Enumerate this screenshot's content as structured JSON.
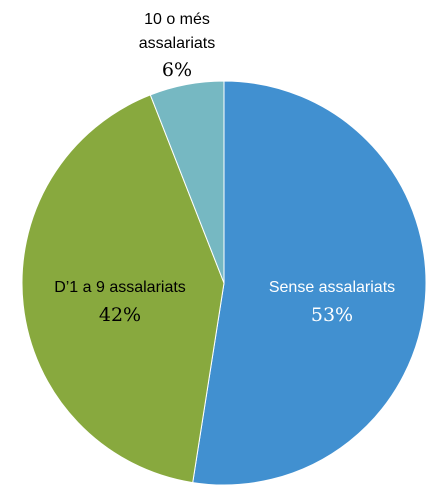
{
  "chart_data": {
    "type": "pie",
    "title": "",
    "slices": [
      {
        "label": "Sense assalariats",
        "value": 53,
        "value_label": "53%",
        "color": "#4190d0",
        "label_color": "#ffffff"
      },
      {
        "label": "D’1 a 9 assalariats",
        "value": 42,
        "value_label": "42%",
        "color": "#88a93e",
        "label_color": "#000000"
      },
      {
        "label_lines": [
          "10 o més",
          "assalariats"
        ],
        "value": 6,
        "value_label": "6%",
        "color": "#76b8c2",
        "label_color": "#000000"
      }
    ],
    "start_angle_deg": 0,
    "direction": "clockwise",
    "legend": "none"
  }
}
